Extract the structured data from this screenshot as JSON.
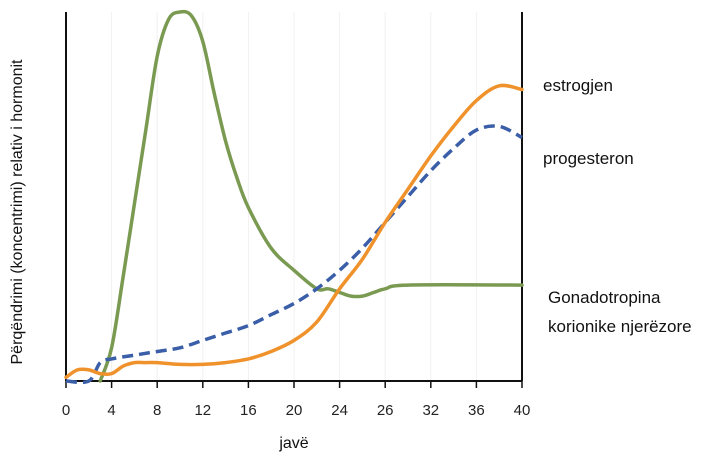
{
  "chart_data": {
    "type": "line",
    "title": "",
    "xlabel": "javë",
    "ylabel": "Përqëndrimi (koncentrimi) relativ i hormonit",
    "xlim": [
      0,
      40
    ],
    "ylim": [
      0,
      100
    ],
    "x_ticks": [
      "0",
      "4",
      "8",
      "12",
      "16",
      "20",
      "24",
      "26",
      "32",
      "36",
      "40"
    ],
    "series": [
      {
        "name": "estrogjen",
        "color": "#f0922b",
        "dashed": false,
        "points": [
          [
            0,
            1
          ],
          [
            1,
            3
          ],
          [
            2,
            3
          ],
          [
            3,
            2
          ],
          [
            4,
            2
          ],
          [
            5,
            4
          ],
          [
            6,
            5
          ],
          [
            7,
            5
          ],
          [
            8,
            5
          ],
          [
            10,
            4.5
          ],
          [
            12,
            4.5
          ],
          [
            14,
            5
          ],
          [
            16,
            6
          ],
          [
            18,
            8
          ],
          [
            20,
            11
          ],
          [
            22,
            16
          ],
          [
            24,
            25
          ],
          [
            26,
            33
          ],
          [
            28,
            43
          ],
          [
            30,
            52
          ],
          [
            32,
            61
          ],
          [
            34,
            69
          ],
          [
            36,
            76
          ],
          [
            38,
            80
          ],
          [
            40,
            79
          ]
        ]
      },
      {
        "name": "progesteron",
        "color": "#3a5ea8",
        "dashed": true,
        "points": [
          [
            0,
            0
          ],
          [
            2,
            0
          ],
          [
            3,
            5
          ],
          [
            4,
            6
          ],
          [
            6,
            7
          ],
          [
            8,
            8
          ],
          [
            10,
            9
          ],
          [
            12,
            11
          ],
          [
            14,
            13
          ],
          [
            16,
            15
          ],
          [
            18,
            18
          ],
          [
            20,
            21
          ],
          [
            22,
            25
          ],
          [
            24,
            30
          ],
          [
            26,
            36
          ],
          [
            28,
            43
          ],
          [
            30,
            50
          ],
          [
            32,
            57
          ],
          [
            34,
            63
          ],
          [
            36,
            68
          ],
          [
            38,
            69
          ],
          [
            40,
            66
          ]
        ]
      },
      {
        "name": "Gonadotropina korionike njerëzore",
        "color": "#7a9a52",
        "dashed": false,
        "points": [
          [
            3,
            0
          ],
          [
            4,
            9
          ],
          [
            5,
            28
          ],
          [
            6,
            48
          ],
          [
            7,
            68
          ],
          [
            8,
            88
          ],
          [
            9,
            98
          ],
          [
            10,
            100
          ],
          [
            11,
            99
          ],
          [
            12,
            92
          ],
          [
            13,
            78
          ],
          [
            14,
            65
          ],
          [
            15,
            55
          ],
          [
            16,
            47
          ],
          [
            18,
            36
          ],
          [
            20,
            30
          ],
          [
            22,
            25
          ],
          [
            23,
            25
          ],
          [
            24,
            24
          ],
          [
            25,
            23
          ],
          [
            26,
            23
          ],
          [
            27,
            24
          ],
          [
            28,
            25
          ],
          [
            30,
            26
          ],
          [
            40,
            26
          ]
        ]
      }
    ],
    "labels": {
      "estrogjen": "estrogjen",
      "progesteron": "progesteron",
      "hcg_line1": "Gonadotropina",
      "hcg_line2": "korionike njerëzore"
    }
  }
}
